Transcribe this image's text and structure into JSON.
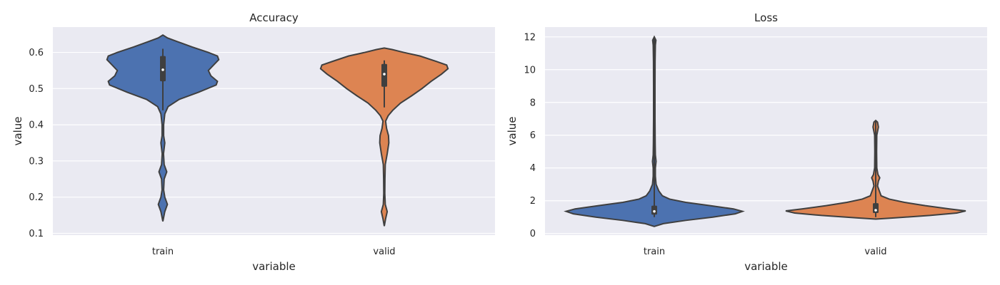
{
  "chart_data": [
    {
      "type": "violin",
      "title": "Accuracy",
      "xlabel": "variable",
      "ylabel": "value",
      "categories": [
        "train",
        "valid"
      ],
      "colors": [
        "#4c72b0",
        "#dd8452"
      ],
      "ylim": [
        0.095,
        0.67
      ],
      "yticks": [
        0.1,
        0.2,
        0.3,
        0.4,
        0.5,
        0.6
      ],
      "ytick_labels": [
        "0.1",
        "0.2",
        "0.3",
        "0.4",
        "0.5",
        "0.6"
      ],
      "grid": true,
      "violins": [
        {
          "category": "train",
          "min": 0.133,
          "max": 0.648,
          "q1": 0.52,
          "median": 0.552,
          "q3": 0.59,
          "whisker_low": 0.44,
          "whisker_high": 0.61,
          "density": [
            [
              0.133,
              0.0
            ],
            [
              0.16,
              0.03
            ],
            [
              0.18,
              0.07
            ],
            [
              0.2,
              0.03
            ],
            [
              0.22,
              0.012
            ],
            [
              0.25,
              0.02
            ],
            [
              0.27,
              0.06
            ],
            [
              0.29,
              0.02
            ],
            [
              0.32,
              0.01
            ],
            [
              0.35,
              0.03
            ],
            [
              0.37,
              0.012
            ],
            [
              0.4,
              0.012
            ],
            [
              0.43,
              0.03
            ],
            [
              0.45,
              0.08
            ],
            [
              0.47,
              0.25
            ],
            [
              0.49,
              0.55
            ],
            [
              0.51,
              0.82
            ],
            [
              0.52,
              0.84
            ],
            [
              0.535,
              0.74
            ],
            [
              0.55,
              0.7
            ],
            [
              0.565,
              0.78
            ],
            [
              0.58,
              0.86
            ],
            [
              0.59,
              0.84
            ],
            [
              0.6,
              0.7
            ],
            [
              0.615,
              0.45
            ],
            [
              0.63,
              0.22
            ],
            [
              0.64,
              0.07
            ],
            [
              0.648,
              0.0
            ]
          ]
        },
        {
          "category": "valid",
          "min": 0.12,
          "max": 0.612,
          "q1": 0.505,
          "median": 0.54,
          "q3": 0.568,
          "whisker_low": 0.448,
          "whisker_high": 0.578,
          "density": [
            [
              0.12,
              0.0
            ],
            [
              0.14,
              0.02
            ],
            [
              0.16,
              0.045
            ],
            [
              0.18,
              0.015
            ],
            [
              0.21,
              0.008
            ],
            [
              0.25,
              0.01
            ],
            [
              0.29,
              0.015
            ],
            [
              0.32,
              0.045
            ],
            [
              0.35,
              0.07
            ],
            [
              0.37,
              0.065
            ],
            [
              0.39,
              0.035
            ],
            [
              0.41,
              0.02
            ],
            [
              0.425,
              0.06
            ],
            [
              0.44,
              0.13
            ],
            [
              0.46,
              0.25
            ],
            [
              0.48,
              0.42
            ],
            [
              0.5,
              0.58
            ],
            [
              0.52,
              0.72
            ],
            [
              0.54,
              0.88
            ],
            [
              0.555,
              0.98
            ],
            [
              0.565,
              0.96
            ],
            [
              0.575,
              0.8
            ],
            [
              0.59,
              0.55
            ],
            [
              0.6,
              0.3
            ],
            [
              0.608,
              0.12
            ],
            [
              0.612,
              0.0
            ]
          ]
        }
      ]
    },
    {
      "type": "violin",
      "title": "Loss",
      "xlabel": "variable",
      "ylabel": "value",
      "categories": [
        "train",
        "valid"
      ],
      "colors": [
        "#4c72b0",
        "#dd8452"
      ],
      "ylim": [
        -0.1,
        12.6
      ],
      "yticks": [
        0,
        2,
        4,
        6,
        8,
        10,
        12
      ],
      "ytick_labels": [
        "0",
        "2",
        "4",
        "6",
        "8",
        "10",
        "12"
      ],
      "grid": true,
      "violins": [
        {
          "category": "train",
          "min": 0.43,
          "max": 12.0,
          "q1": 1.15,
          "median": 1.35,
          "q3": 1.7,
          "whisker_low": 1.0,
          "whisker_high": 12.0,
          "density": [
            [
              0.43,
              0.0
            ],
            [
              0.6,
              0.1
            ],
            [
              0.8,
              0.35
            ],
            [
              1.0,
              0.65
            ],
            [
              1.2,
              0.9
            ],
            [
              1.35,
              0.98
            ],
            [
              1.5,
              0.88
            ],
            [
              1.7,
              0.62
            ],
            [
              1.9,
              0.35
            ],
            [
              2.1,
              0.17
            ],
            [
              2.3,
              0.09
            ],
            [
              2.6,
              0.05
            ],
            [
              3.0,
              0.02
            ],
            [
              3.5,
              0.012
            ],
            [
              4.0,
              0.012
            ],
            [
              4.4,
              0.02
            ],
            [
              4.8,
              0.012
            ],
            [
              5.5,
              0.01
            ],
            [
              7.0,
              0.008
            ],
            [
              9.0,
              0.008
            ],
            [
              10.5,
              0.009
            ],
            [
              11.5,
              0.012
            ],
            [
              11.8,
              0.018
            ],
            [
              12.0,
              0.0
            ]
          ]
        },
        {
          "category": "valid",
          "min": 0.88,
          "max": 6.9,
          "q1": 1.25,
          "median": 1.42,
          "q3": 1.85,
          "whisker_low": 1.0,
          "whisker_high": 6.9,
          "density": [
            [
              0.88,
              0.0
            ],
            [
              0.95,
              0.2
            ],
            [
              1.1,
              0.6
            ],
            [
              1.25,
              0.9
            ],
            [
              1.38,
              1.0
            ],
            [
              1.5,
              0.82
            ],
            [
              1.7,
              0.55
            ],
            [
              1.9,
              0.32
            ],
            [
              2.1,
              0.15
            ],
            [
              2.3,
              0.06
            ],
            [
              2.6,
              0.04
            ],
            [
              2.9,
              0.02
            ],
            [
              3.2,
              0.03
            ],
            [
              3.4,
              0.045
            ],
            [
              3.6,
              0.025
            ],
            [
              4.0,
              0.012
            ],
            [
              5.0,
              0.01
            ],
            [
              6.0,
              0.012
            ],
            [
              6.5,
              0.03
            ],
            [
              6.8,
              0.02
            ],
            [
              6.9,
              0.0
            ]
          ]
        }
      ]
    }
  ]
}
